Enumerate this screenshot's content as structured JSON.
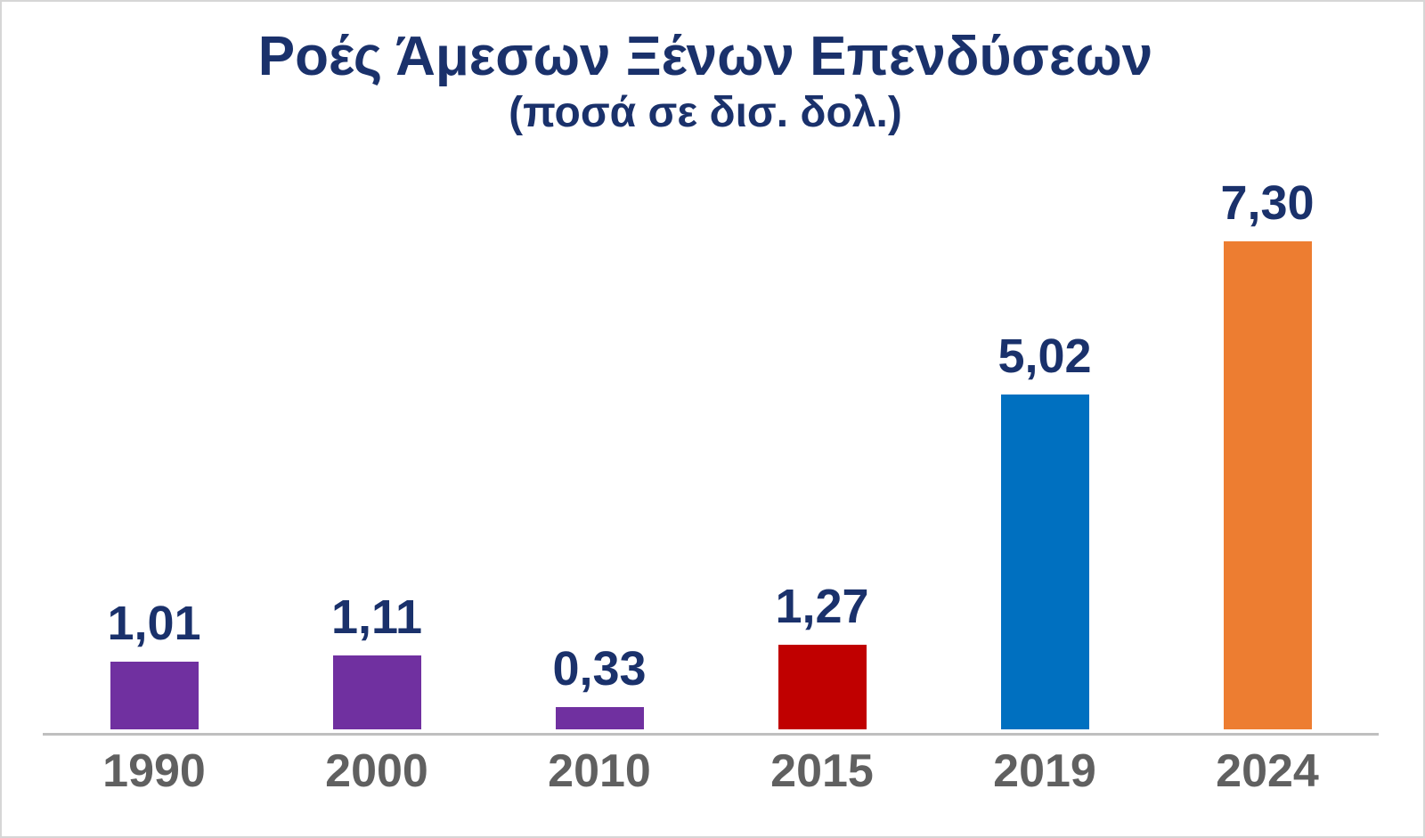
{
  "chart_data": {
    "type": "bar",
    "title": "Ροές Άμεσων Ξένων Επενδύσεων",
    "subtitle": "(ποσά σε δισ. δολ.)",
    "xlabel": "",
    "ylabel": "",
    "categories": [
      "1990",
      "2000",
      "2010",
      "2015",
      "2019",
      "2024"
    ],
    "values": [
      1.01,
      1.11,
      0.33,
      1.27,
      5.02,
      7.3
    ],
    "value_labels": [
      "1,01",
      "1,11",
      "0,33",
      "1,27",
      "5,02",
      "7,30"
    ],
    "bar_colors": [
      "#7030A0",
      "#7030A0",
      "#7030A0",
      "#C00000",
      "#0070C0",
      "#ED7D31"
    ],
    "ylim": [
      0,
      7.67
    ],
    "grid": false,
    "legend": false,
    "decimal_separator": ",",
    "colors": {
      "title_text": "#1A316B",
      "value_label_text": "#1A316B",
      "category_label_text": "#606060",
      "axis_line": "#BFBFBF",
      "background": "#FFFFFF",
      "frame_border": "#D6D6D6"
    }
  }
}
